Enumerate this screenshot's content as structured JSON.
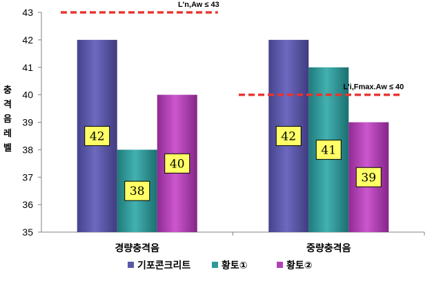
{
  "chart_data": {
    "type": "bar",
    "ylabel": "충격음레벨",
    "categories": [
      "경량충격음",
      "중량충격음"
    ],
    "ylim": [
      35,
      43
    ],
    "yticks": [
      35,
      36,
      37,
      38,
      39,
      40,
      41,
      42,
      43
    ],
    "grid": false,
    "legend": "bottom",
    "series": [
      {
        "name": "기포콘크리트",
        "values": [
          42,
          42
        ],
        "color": "#5a57a8",
        "label_color": "#ffff66"
      },
      {
        "name": "황토①",
        "values": [
          38,
          41
        ],
        "color": "#2f9a9a",
        "label_color": "#ffff66"
      },
      {
        "name": "황토②",
        "values": [
          40,
          39
        ],
        "color": "#b23fb5",
        "label_color": "#ffff66"
      }
    ],
    "reference_lines": [
      {
        "label": "L'n,Aw ≤ 43",
        "value": 43,
        "category_index": 0,
        "color": "#e8342e"
      },
      {
        "label": "L'i,Fmax.Aw ≤ 40",
        "value": 40,
        "category_index": 1,
        "color": "#e8342e"
      }
    ]
  }
}
